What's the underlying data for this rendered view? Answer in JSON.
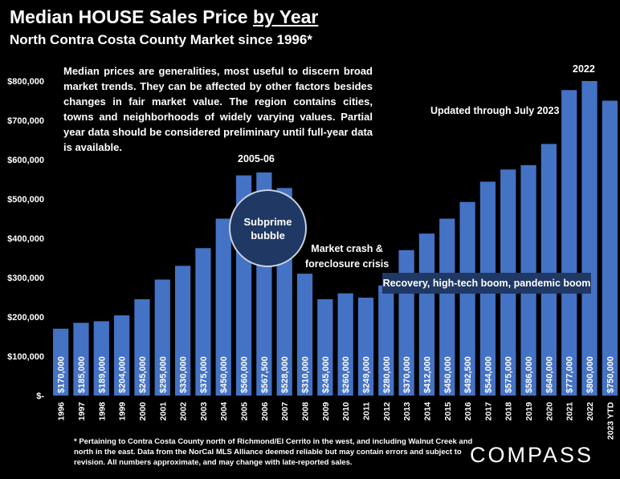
{
  "header": {
    "title_main": "Median HOUSE Sales Price ",
    "title_underlined": "by Year",
    "subtitle": "North Contra Costa County Market since 1996*"
  },
  "note": "Median prices are generalities, most useful to discern broad market trends. They can be affected by other factors besides changes in fair market value. The region contains cities, towns and neighborhoods of widely varying values. Partial year data should be considered preliminary until full-year data is available.",
  "annotations": {
    "peak_2022": "2022",
    "updated": "Updated through July 2023",
    "peak_2005": "2005-06",
    "bubble": "Subprime bubble",
    "crash_line1": "Market crash &",
    "crash_line2": "foreclosure crisis",
    "recovery": "Recovery, high-tech boom, pandemic  boom"
  },
  "footnote": "* Pertaining to Contra Costa County north of Richmond/El Cerrito in the west, and including Walnut Creek and north in the east. Data from the NorCal MLS Alliance deemed reliable but may contain errors and subject to revision. All numbers approximate, and may change with late-reported sales.",
  "logo": "COMPASS",
  "colors": {
    "bar": "#4472c4",
    "background": "#000000",
    "callout": "#1f3864"
  },
  "chart_data": {
    "type": "bar",
    "title": "Median HOUSE Sales Price by Year",
    "subtitle": "North Contra Costa County Market since 1996*",
    "categories": [
      "1996",
      "1997",
      "1998",
      "1999",
      "2000",
      "2001",
      "2002",
      "2003",
      "2004",
      "2005",
      "2006",
      "2007",
      "2008",
      "2009",
      "2010",
      "2011",
      "2012",
      "2013",
      "2014",
      "2015",
      "2016",
      "2017",
      "2018",
      "2019",
      "2020",
      "2021",
      "2022",
      "2023 YTD"
    ],
    "values": [
      170000,
      185000,
      189000,
      204000,
      245000,
      295000,
      330000,
      375000,
      450000,
      560000,
      567500,
      528000,
      310000,
      245000,
      260000,
      249000,
      280000,
      370000,
      412000,
      450000,
      492500,
      544000,
      575000,
      586000,
      640000,
      777000,
      800000,
      750000
    ],
    "labels": [
      "$170,000",
      "$185,000",
      "$189,000",
      "$204,000",
      "$245,000",
      "$295,000",
      "$330,000",
      "$375,000",
      "$450,000",
      "$560,000",
      "$567,500",
      "$528,000",
      "$310,000",
      "$245,000",
      "$260,000",
      "$249,000",
      "$280,000",
      "$370,000",
      "$412,000",
      "$450,000",
      "$492,500",
      "$544,000",
      "$575,000",
      "$586,000",
      "$640,000",
      "$777,000",
      "$800,000",
      "$750,000"
    ],
    "ylim": [
      0,
      800000
    ],
    "yticks": [
      0,
      100000,
      200000,
      300000,
      400000,
      500000,
      600000,
      700000,
      800000
    ],
    "ytick_labels": [
      "$-",
      "$100,000",
      "$200,000",
      "$300,000",
      "$400,000",
      "$500,000",
      "$600,000",
      "$700,000",
      "$800,000"
    ],
    "grid": false,
    "legend": "none"
  }
}
